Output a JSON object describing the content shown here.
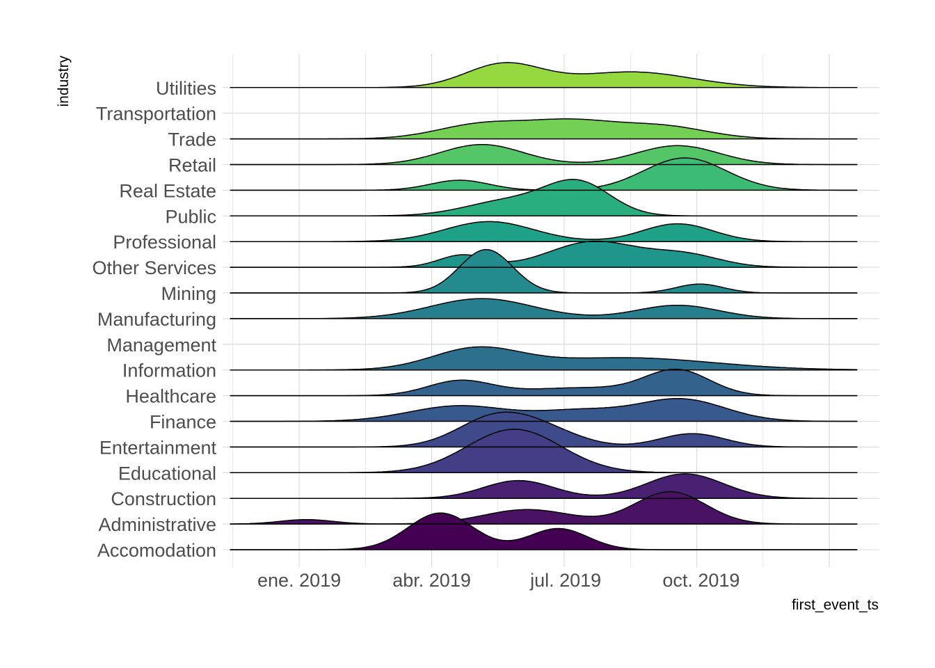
{
  "chart_data": {
    "type": "ridgeline",
    "title": "",
    "xlabel": "first_event_ts",
    "ylabel": "industry",
    "x_ticks": [
      "2019-01-01",
      "2019-04-01",
      "2019-07-01",
      "2019-10-01"
    ],
    "x_tick_labels": [
      "ene. 2019",
      "abr. 2019",
      "jul. 2019",
      "oct. 2019"
    ],
    "xlim": [
      "2018-11-10",
      "2020-01-30"
    ],
    "x_range_drawn": [
      "2018-11-15",
      "2020-01-15"
    ],
    "grid": true,
    "legend": "none",
    "palette": "viridis",
    "categories": [
      "Accomodation",
      "Administrative",
      "Construction",
      "Educational",
      "Entertainment",
      "Finance",
      "Healthcare",
      "Information",
      "Management",
      "Manufacturing",
      "Mining",
      "Other Services",
      "Professional",
      "Public",
      "Real Estate",
      "Retail",
      "Trade",
      "Transportation",
      "Utilities"
    ],
    "series": [
      {
        "name": "Accomodation",
        "color": "#440154",
        "peaks": [
          {
            "center": "2019-04-07",
            "width_days": 22,
            "height": 1.65
          },
          {
            "center": "2019-06-26",
            "width_days": 20,
            "height": 0.95
          }
        ]
      },
      {
        "name": "Administrative",
        "color": "#4A1263",
        "peaks": [
          {
            "center": "2019-01-06",
            "width_days": 18,
            "height": 0.2
          },
          {
            "center": "2019-06-05",
            "width_days": 30,
            "height": 0.65
          },
          {
            "center": "2019-09-10",
            "width_days": 24,
            "height": 1.45
          }
        ]
      },
      {
        "name": "Construction",
        "color": "#482173",
        "peaks": [
          {
            "center": "2019-05-30",
            "width_days": 24,
            "height": 0.8
          },
          {
            "center": "2019-09-20",
            "width_days": 26,
            "height": 1.1
          }
        ]
      },
      {
        "name": "Educational",
        "color": "#433E85",
        "peaks": [
          {
            "center": "2019-05-27",
            "width_days": 32,
            "height": 1.95
          }
        ]
      },
      {
        "name": "Entertainment",
        "color": "#3E4A89",
        "peaks": [
          {
            "center": "2019-05-15",
            "width_days": 26,
            "height": 1.35
          },
          {
            "center": "2019-06-20",
            "width_days": 24,
            "height": 0.55
          },
          {
            "center": "2019-09-25",
            "width_days": 22,
            "height": 0.6
          }
        ]
      },
      {
        "name": "Finance",
        "color": "#38598C",
        "peaks": [
          {
            "center": "2019-04-20",
            "width_days": 34,
            "height": 0.7
          },
          {
            "center": "2019-07-10",
            "width_days": 28,
            "height": 0.45
          },
          {
            "center": "2019-09-17",
            "width_days": 30,
            "height": 1.0
          }
        ]
      },
      {
        "name": "Healthcare",
        "color": "#33638D",
        "peaks": [
          {
            "center": "2019-04-20",
            "width_days": 22,
            "height": 0.65
          },
          {
            "center": "2019-07-10",
            "width_days": 40,
            "height": 0.35
          },
          {
            "center": "2019-09-15",
            "width_days": 22,
            "height": 1.1
          }
        ]
      },
      {
        "name": "Information",
        "color": "#2D708E",
        "peaks": [
          {
            "center": "2019-05-01",
            "width_days": 30,
            "height": 0.9
          },
          {
            "center": "2019-08-10",
            "width_days": 60,
            "height": 0.55
          }
        ]
      },
      {
        "name": "Management",
        "color": "#2A788E",
        "peaks": []
      },
      {
        "name": "Manufacturing",
        "color": "#277F8E",
        "peaks": [
          {
            "center": "2019-05-05",
            "width_days": 35,
            "height": 0.9
          },
          {
            "center": "2019-09-15",
            "width_days": 28,
            "height": 0.6
          }
        ]
      },
      {
        "name": "Mining",
        "color": "#238A8D",
        "peaks": [
          {
            "center": "2019-05-08",
            "width_days": 18,
            "height": 1.95
          },
          {
            "center": "2019-09-30",
            "width_days": 16,
            "height": 0.4
          }
        ]
      },
      {
        "name": "Other Services",
        "color": "#1F968B",
        "peaks": [
          {
            "center": "2019-04-22",
            "width_days": 16,
            "height": 0.55
          },
          {
            "center": "2019-07-20",
            "width_days": 30,
            "height": 1.15
          },
          {
            "center": "2019-09-20",
            "width_days": 24,
            "height": 0.55
          }
        ]
      },
      {
        "name": "Professional",
        "color": "#1FA187",
        "peaks": [
          {
            "center": "2019-05-10",
            "width_days": 30,
            "height": 0.9
          },
          {
            "center": "2019-09-15",
            "width_days": 24,
            "height": 0.8
          }
        ]
      },
      {
        "name": "Public",
        "color": "#29AF7F",
        "peaks": [
          {
            "center": "2019-05-25",
            "width_days": 30,
            "height": 0.7
          },
          {
            "center": "2019-07-10",
            "width_days": 22,
            "height": 1.4
          }
        ]
      },
      {
        "name": "Real Estate",
        "color": "#3CBB75",
        "peaks": [
          {
            "center": "2019-04-20",
            "width_days": 20,
            "height": 0.45
          },
          {
            "center": "2019-09-20",
            "width_days": 28,
            "height": 1.45
          }
        ]
      },
      {
        "name": "Retail",
        "color": "#55C667",
        "peaks": [
          {
            "center": "2019-05-05",
            "width_days": 28,
            "height": 0.9
          },
          {
            "center": "2019-09-15",
            "width_days": 28,
            "height": 0.85
          }
        ]
      },
      {
        "name": "Trade",
        "color": "#73D055",
        "peaks": [
          {
            "center": "2019-05-05",
            "width_days": 30,
            "height": 0.65
          },
          {
            "center": "2019-07-05",
            "width_days": 30,
            "height": 0.75
          },
          {
            "center": "2019-09-05",
            "width_days": 30,
            "height": 0.55
          }
        ]
      },
      {
        "name": "Transportation",
        "color": "#8CD645",
        "peaks": []
      },
      {
        "name": "Utilities",
        "color": "#95D840",
        "peaks": [
          {
            "center": "2019-05-20",
            "width_days": 26,
            "height": 1.05
          },
          {
            "center": "2019-08-15",
            "width_days": 40,
            "height": 0.7
          }
        ]
      }
    ]
  }
}
